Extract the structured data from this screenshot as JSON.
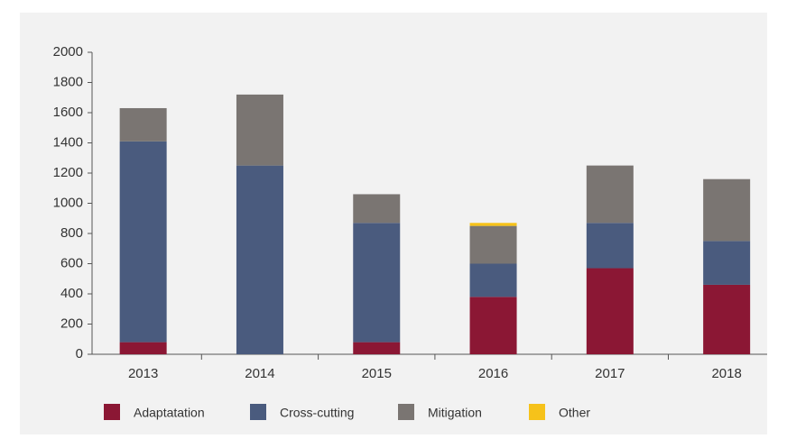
{
  "chart_data": {
    "type": "stacked_bar",
    "categories": [
      "2013",
      "2014",
      "2015",
      "2016",
      "2017",
      "2018"
    ],
    "series": [
      {
        "name": "Adaptatation",
        "color": "#8b1734",
        "values": [
          80,
          0,
          80,
          380,
          570,
          460
        ]
      },
      {
        "name": "Cross-cutting",
        "color": "#4a5b7e",
        "values": [
          1330,
          1250,
          790,
          220,
          300,
          290
        ]
      },
      {
        "name": "Mitigation",
        "color": "#7a7572",
        "values": [
          220,
          470,
          190,
          250,
          380,
          410
        ]
      },
      {
        "name": "Other",
        "color": "#f6c21a",
        "values": [
          0,
          0,
          0,
          20,
          0,
          0
        ]
      }
    ],
    "ylim": [
      0,
      2000
    ],
    "yticks": [
      0,
      200,
      400,
      600,
      800,
      1000,
      1200,
      1400,
      1600,
      1800,
      2000
    ]
  }
}
